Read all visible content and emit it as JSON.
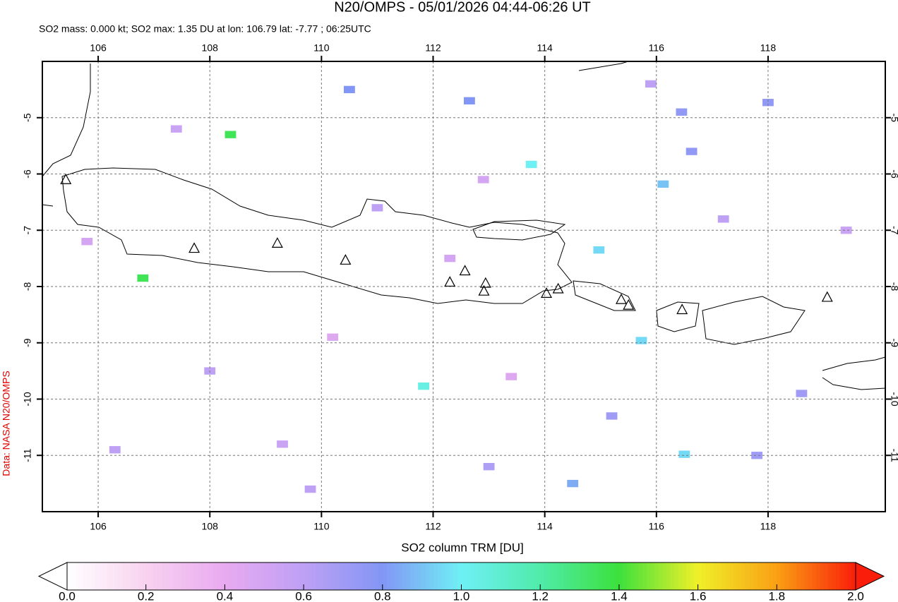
{
  "chart_data": {
    "type": "map",
    "title": "N20/OMPS - 05/01/2026 04:44-06:26 UT",
    "subtitle": "SO2 mass: 0.000 kt; SO2 max: 1.35 DU at lon: 106.79 lat: -7.77 ; 06:25UTC",
    "credit": "Data: NASA N20/OMPS",
    "colorbar_label": "SO2 column TRM [DU]",
    "xlim": [
      105,
      120.1
    ],
    "ylim": [
      -12,
      -4
    ],
    "xticks": [
      106,
      108,
      110,
      112,
      114,
      116,
      118
    ],
    "yticks": [
      -5,
      -6,
      -7,
      -8,
      -9,
      -10,
      -11
    ],
    "grid": true,
    "clim": [
      0,
      2
    ],
    "cticks": [
      {
        "value": 0,
        "label": "0.0"
      },
      0.2,
      0.4,
      0.6,
      0.8,
      {
        "value": 1,
        "label": "1.0"
      },
      1.2,
      1.4,
      1.6,
      1.8,
      {
        "value": 2,
        "label": "2.0"
      }
    ],
    "pixels": {
      "lon": [
        106.8,
        108.37,
        113.76,
        111.83,
        114.97,
        115.73,
        116.12,
        116.5,
        116.45,
        118.0,
        116.63,
        112.65,
        112.3,
        110.5,
        108.0,
        109.3,
        111.0,
        113.0,
        114.5,
        115.2,
        117.2,
        118.6,
        106.3,
        107.4,
        110.2,
        112.9,
        115.9,
        117.8,
        119.4,
        105.8,
        109.8,
        113.4
      ],
      "lat": [
        -7.85,
        -5.3,
        -5.83,
        -9.77,
        -7.35,
        -8.96,
        -6.18,
        -10.98,
        -4.9,
        -4.73,
        -5.6,
        -4.7,
        -7.5,
        -4.5,
        -9.5,
        -10.8,
        -6.6,
        -11.2,
        -11.5,
        -10.3,
        -6.8,
        -9.9,
        -10.9,
        -5.2,
        -8.9,
        -6.1,
        -4.4,
        -11.0,
        -7.0,
        -7.2,
        -11.6,
        -9.6
      ],
      "values": [
        1.35,
        1.35,
        1.0,
        1.05,
        0.95,
        0.95,
        0.9,
        0.95,
        0.75,
        0.75,
        0.75,
        0.8,
        0.5,
        0.8,
        0.6,
        0.55,
        0.6,
        0.65,
        0.85,
        0.7,
        0.6,
        0.7,
        0.6,
        0.55,
        0.45,
        0.5,
        0.6,
        0.7,
        0.55,
        0.5,
        0.6,
        0.45
      ]
    },
    "volcanoes": {
      "lon": [
        105.42,
        107.72,
        109.21,
        110.43,
        112.3,
        112.57,
        112.94,
        112.91,
        114.03,
        114.24,
        115.37,
        115.5,
        116.46,
        119.06
      ],
      "lat": [
        -6.11,
        -7.33,
        -7.24,
        -7.54,
        -7.93,
        -7.73,
        -7.95,
        -8.09,
        -8.13,
        -8.05,
        -8.24,
        -8.34,
        -8.42,
        -8.2
      ]
    }
  }
}
